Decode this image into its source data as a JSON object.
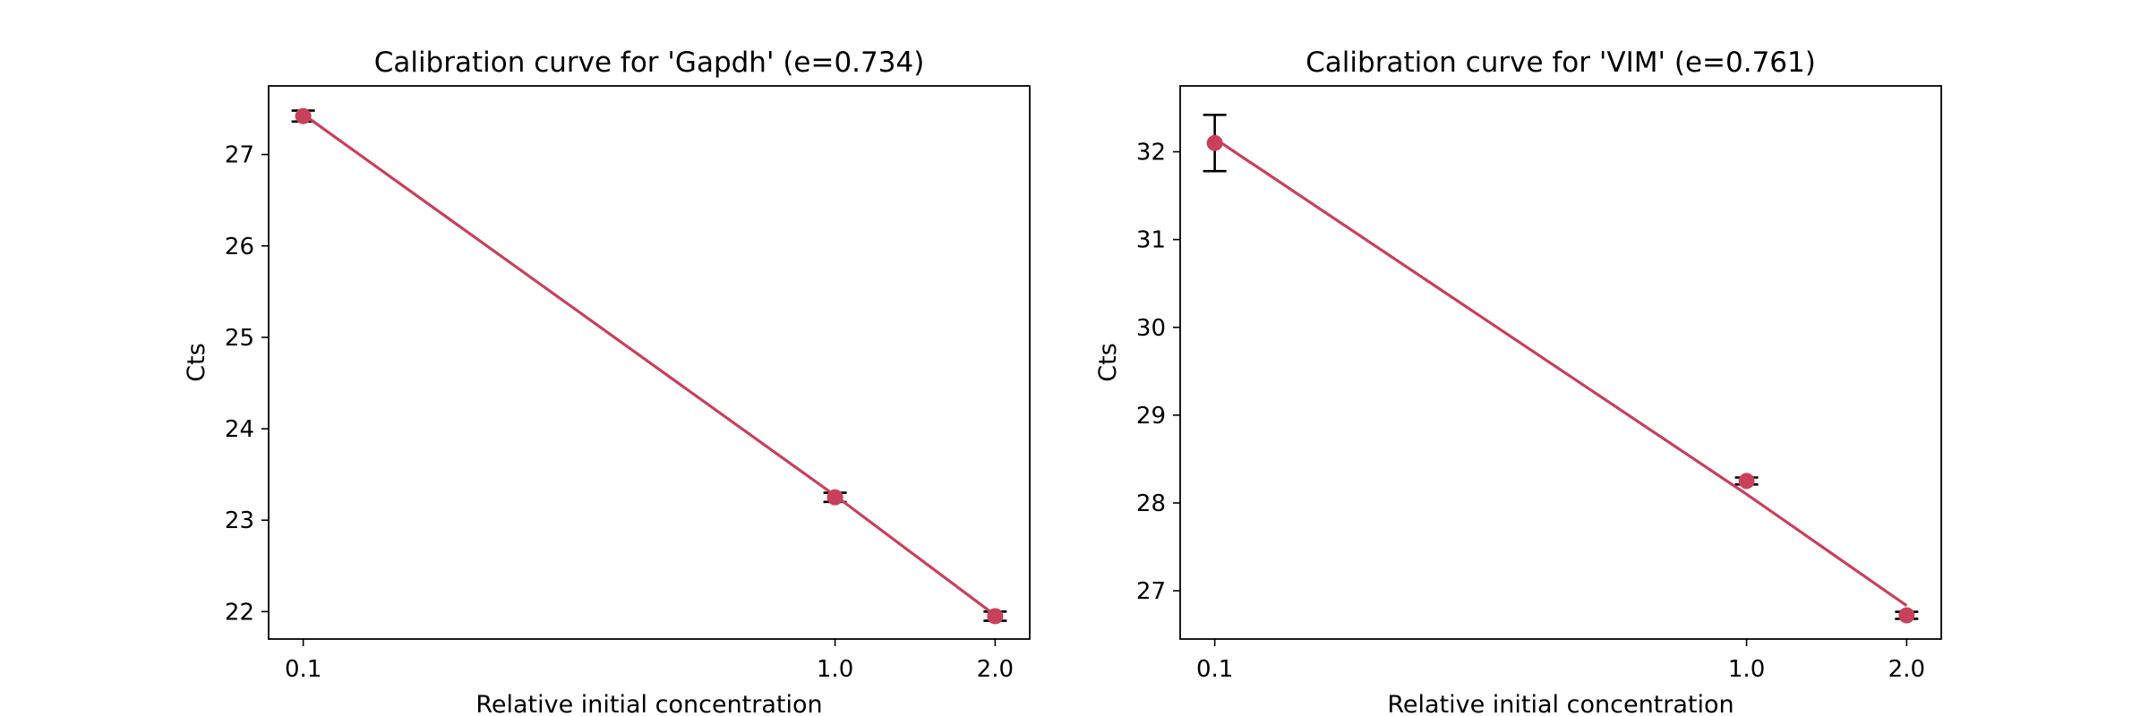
{
  "chart_data": [
    {
      "type": "line",
      "title": "Calibration curve for 'Gapdh' (e=0.734)",
      "xlabel": "Relative initial concentration",
      "ylabel": "Cts",
      "xscale": "log",
      "x_tick_labels": [
        "0.1",
        "1.0",
        "2.0"
      ],
      "x": [
        0.1,
        1.0,
        2.0
      ],
      "ylim": [
        21.7,
        27.75
      ],
      "y_ticks": [
        22,
        23,
        24,
        25,
        26,
        27
      ],
      "grid": false,
      "series": [
        {
          "kind": "errorbar-points",
          "color": "#c9405b",
          "values": [
            27.42,
            23.25,
            21.95
          ],
          "errors": [
            0.06,
            0.05,
            0.05
          ]
        },
        {
          "kind": "fit-line",
          "color": "#c9405b",
          "values": [
            27.44,
            23.27,
            21.96
          ]
        }
      ]
    },
    {
      "type": "line",
      "title": "Calibration curve for 'VIM' (e=0.761)",
      "xlabel": "Relative initial concentration",
      "ylabel": "Cts",
      "xscale": "log",
      "x_tick_labels": [
        "0.1",
        "1.0",
        "2.0"
      ],
      "x": [
        0.1,
        1.0,
        2.0
      ],
      "ylim": [
        26.45,
        32.75
      ],
      "y_ticks": [
        27,
        28,
        29,
        30,
        31,
        32
      ],
      "grid": false,
      "series": [
        {
          "kind": "errorbar-points",
          "color": "#c9405b",
          "values": [
            32.1,
            28.25,
            26.72
          ],
          "errors": [
            0.32,
            0.04,
            0.04
          ]
        },
        {
          "kind": "fit-line",
          "color": "#c9405b",
          "values": [
            32.15,
            28.1,
            26.83
          ]
        }
      ]
    }
  ]
}
